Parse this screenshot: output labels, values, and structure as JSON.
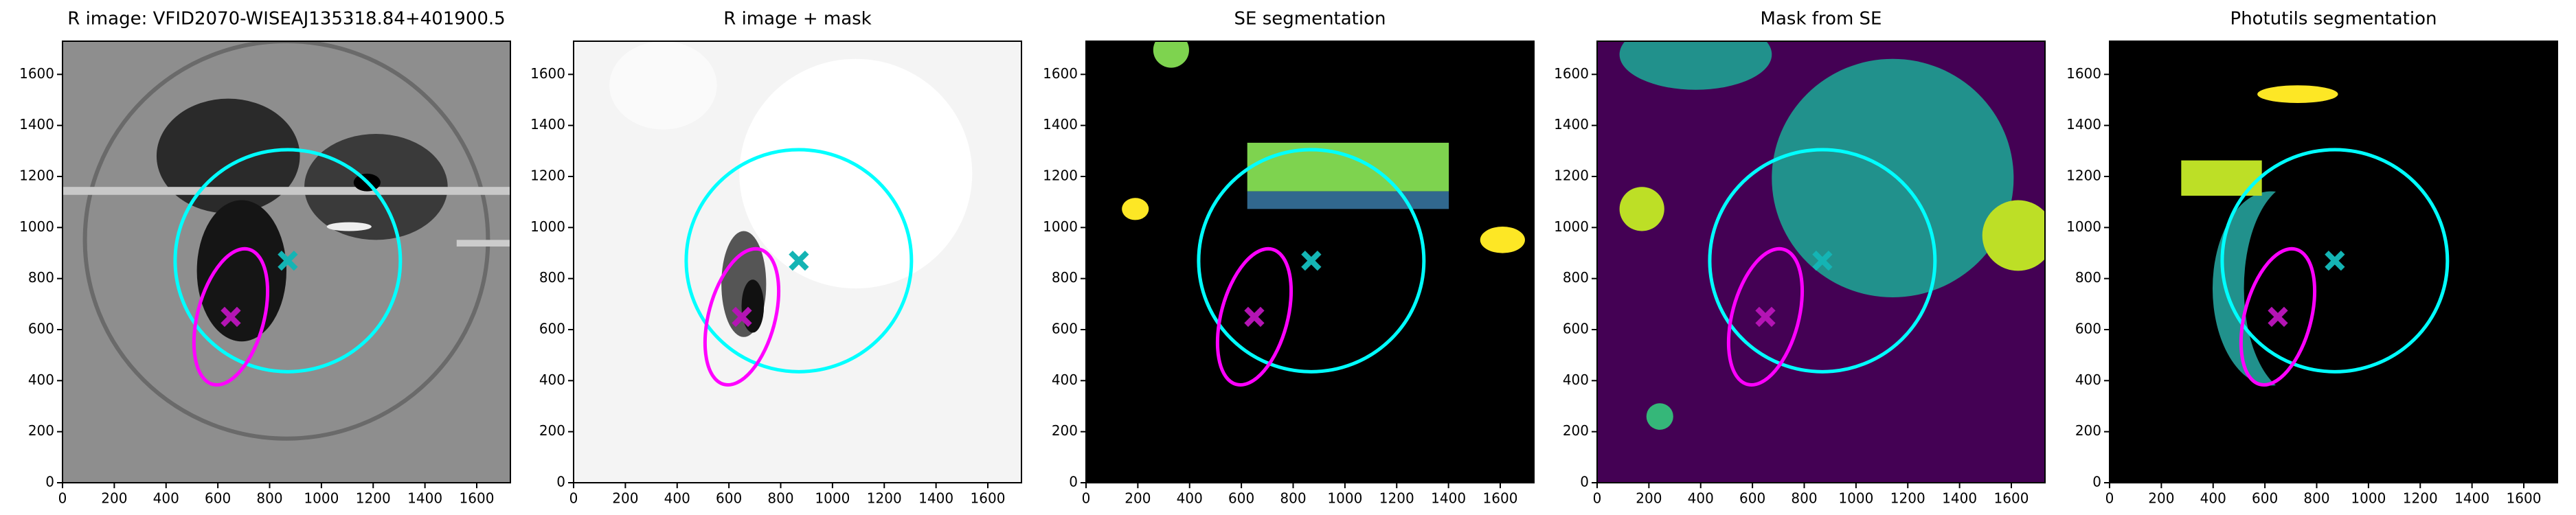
{
  "chart_data": [
    {
      "type": "image",
      "title": "R image: VFID2070-WISEAJ135318.84+401900.5",
      "background": "#8e8e8e",
      "xlim": [
        0,
        1730
      ],
      "ylim": [
        0,
        1730
      ],
      "xticks": [
        0,
        200,
        400,
        600,
        800,
        1000,
        1200,
        1400,
        1600
      ],
      "yticks": [
        0,
        200,
        400,
        600,
        800,
        1000,
        1200,
        1400,
        1600
      ],
      "circle": {
        "x": 870,
        "y": 870,
        "radius": 435,
        "color": "#00ffff"
      },
      "ellipse": {
        "x": 650,
        "y": 650,
        "semi_major": 270,
        "semi_minor": 130,
        "angle": 75,
        "color": "#ff00ff"
      },
      "markers": [
        {
          "x": 870,
          "y": 870,
          "color": "#14b4b4"
        },
        {
          "x": 650,
          "y": 650,
          "color": "#b414b4"
        }
      ]
    },
    {
      "type": "image",
      "title": "R image + mask",
      "background": "#f4f4f4",
      "xlim": [
        0,
        1730
      ],
      "ylim": [
        0,
        1730
      ],
      "xticks": [
        0,
        200,
        400,
        600,
        800,
        1000,
        1200,
        1400,
        1600
      ],
      "yticks": [
        0,
        200,
        400,
        600,
        800,
        1000,
        1200,
        1400,
        1600
      ],
      "circle": {
        "x": 870,
        "y": 870,
        "radius": 435,
        "color": "#00ffff"
      },
      "ellipse": {
        "x": 650,
        "y": 650,
        "semi_major": 270,
        "semi_minor": 130,
        "angle": 75,
        "color": "#ff00ff"
      },
      "markers": [
        {
          "x": 870,
          "y": 870,
          "color": "#14b4b4"
        },
        {
          "x": 650,
          "y": 650,
          "color": "#b414b4"
        }
      ]
    },
    {
      "type": "image",
      "title": "SE segmentation",
      "background": "#000000",
      "xlim": [
        0,
        1730
      ],
      "ylim": [
        0,
        1730
      ],
      "xticks": [
        0,
        200,
        400,
        600,
        800,
        1000,
        1200,
        1400,
        1600
      ],
      "yticks": [
        0,
        200,
        400,
        600,
        800,
        1000,
        1200,
        1400,
        1600
      ],
      "circle": {
        "x": 870,
        "y": 870,
        "radius": 435,
        "color": "#00ffff"
      },
      "ellipse": {
        "x": 650,
        "y": 650,
        "semi_major": 270,
        "semi_minor": 130,
        "angle": 75,
        "color": "#ff00ff"
      },
      "markers": [
        {
          "x": 870,
          "y": 870,
          "color": "#14b4b4"
        },
        {
          "x": 650,
          "y": 650,
          "color": "#b414b4"
        }
      ]
    },
    {
      "type": "image",
      "title": "Mask from SE",
      "background": "#440154",
      "xlim": [
        0,
        1730
      ],
      "ylim": [
        0,
        1730
      ],
      "xticks": [
        0,
        200,
        400,
        600,
        800,
        1000,
        1200,
        1400,
        1600
      ],
      "yticks": [
        0,
        200,
        400,
        600,
        800,
        1000,
        1200,
        1400,
        1600
      ],
      "circle": {
        "x": 870,
        "y": 870,
        "radius": 435,
        "color": "#00ffff"
      },
      "ellipse": {
        "x": 650,
        "y": 650,
        "semi_major": 270,
        "semi_minor": 130,
        "angle": 75,
        "color": "#ff00ff"
      },
      "markers": [
        {
          "x": 870,
          "y": 870,
          "color": "#14b4b4"
        },
        {
          "x": 650,
          "y": 650,
          "color": "#b414b4"
        }
      ]
    },
    {
      "type": "image",
      "title": "Photutils segmentation",
      "background": "#000000",
      "xlim": [
        0,
        1730
      ],
      "ylim": [
        0,
        1730
      ],
      "xticks": [
        0,
        200,
        400,
        600,
        800,
        1000,
        1200,
        1400,
        1600
      ],
      "yticks": [
        0,
        200,
        400,
        600,
        800,
        1000,
        1200,
        1400,
        1600
      ],
      "circle": {
        "x": 870,
        "y": 870,
        "radius": 435,
        "color": "#00ffff"
      },
      "ellipse": {
        "x": 650,
        "y": 650,
        "semi_major": 270,
        "semi_minor": 130,
        "angle": 75,
        "color": "#ff00ff"
      },
      "markers": [
        {
          "x": 870,
          "y": 870,
          "color": "#14b4b4"
        },
        {
          "x": 650,
          "y": 650,
          "color": "#b414b4"
        }
      ]
    }
  ]
}
